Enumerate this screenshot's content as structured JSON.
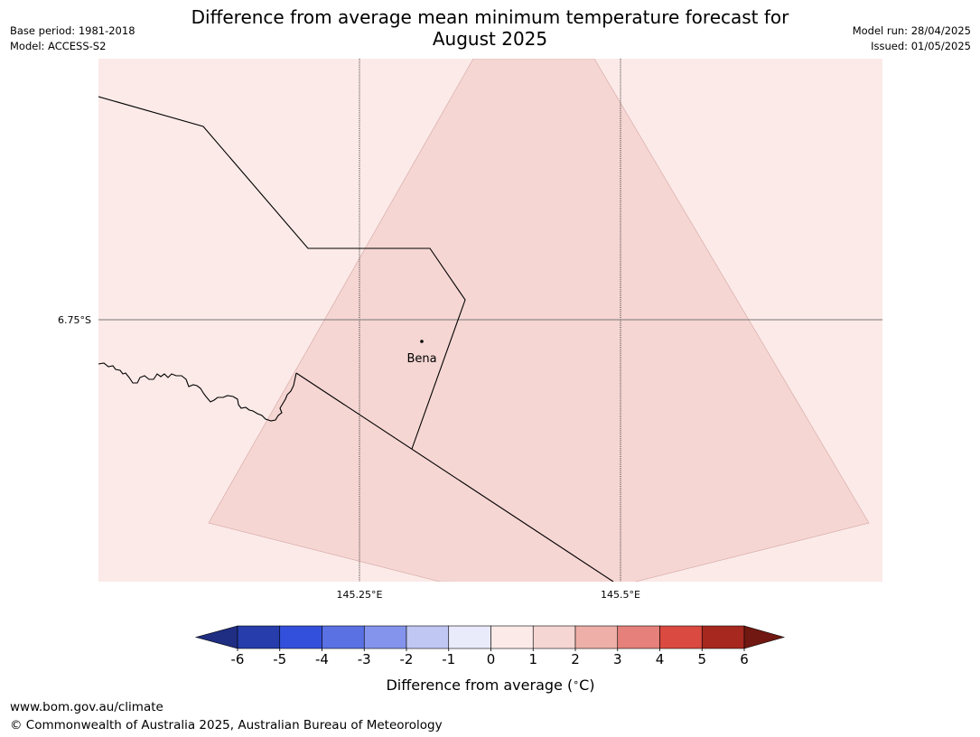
{
  "header": {
    "title_line1": "Difference from average mean minimum temperature forecast for",
    "title_line2": "August 2025",
    "base_period": "Base period: 1981-2018",
    "model": "Model: ACCESS-S2",
    "model_run": "Model run: 28/04/2025",
    "issued": "Issued: 01/05/2025"
  },
  "map": {
    "latitude_labels": [
      "6.75°S"
    ],
    "longitude_labels": [
      "145.25°E",
      "145.5°E"
    ],
    "place_label": "Bena",
    "background_fill_color": "#fbeae8",
    "forecast_cell_color": "#f5d6d3",
    "forecast_cell_value_class": "1 to 2"
  },
  "colorbar": {
    "tick_labels": [
      "-6",
      "-5",
      "-4",
      "-3",
      "-2",
      "-1",
      "0",
      "1",
      "2",
      "3",
      "4",
      "5",
      "6"
    ],
    "colors": [
      "#1f2d82",
      "#263dab",
      "#3350dc",
      "#5a71e4",
      "#8494ec",
      "#c0c7f3",
      "#e9ebfb",
      "#fbeae8",
      "#f5d6d3",
      "#edafa8",
      "#e5807a",
      "#da4a40",
      "#a6281f",
      "#701811"
    ],
    "label": "Difference from average (°C)"
  },
  "footer": {
    "url": "www.bom.gov.au/climate",
    "copyright": "© Commonwealth of Australia 2025, Australian Bureau of Meteorology"
  }
}
